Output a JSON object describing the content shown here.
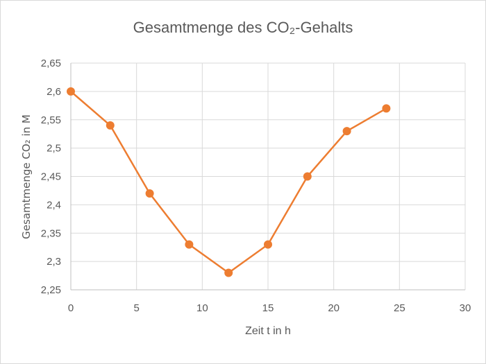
{
  "chart_data": {
    "type": "line",
    "title": "Gesamtmenge des CO₂-Gehalts",
    "xlabel": "Zeit t in h",
    "ylabel": "Gesamtmenge CO₂ in M",
    "xlim": [
      0,
      30
    ],
    "ylim": [
      2.25,
      2.65
    ],
    "xticks": [
      0,
      5,
      10,
      15,
      20,
      25,
      30
    ],
    "yticks": [
      2.25,
      2.3,
      2.35,
      2.4,
      2.45,
      2.5,
      2.55,
      2.6,
      2.65
    ],
    "xtick_labels": [
      "0",
      "5",
      "10",
      "15",
      "20",
      "25",
      "30"
    ],
    "ytick_labels": [
      "2,25",
      "2,3",
      "2,35",
      "2,4",
      "2,45",
      "2,5",
      "2,55",
      "2,6",
      "2,65"
    ],
    "grid": true,
    "series": [
      {
        "color": "#ed7d31",
        "x": [
          0,
          3,
          6,
          9,
          12,
          15,
          18,
          21,
          24
        ],
        "y": [
          2.6,
          2.54,
          2.42,
          2.33,
          2.28,
          2.33,
          2.45,
          2.53,
          2.57
        ]
      }
    ]
  }
}
